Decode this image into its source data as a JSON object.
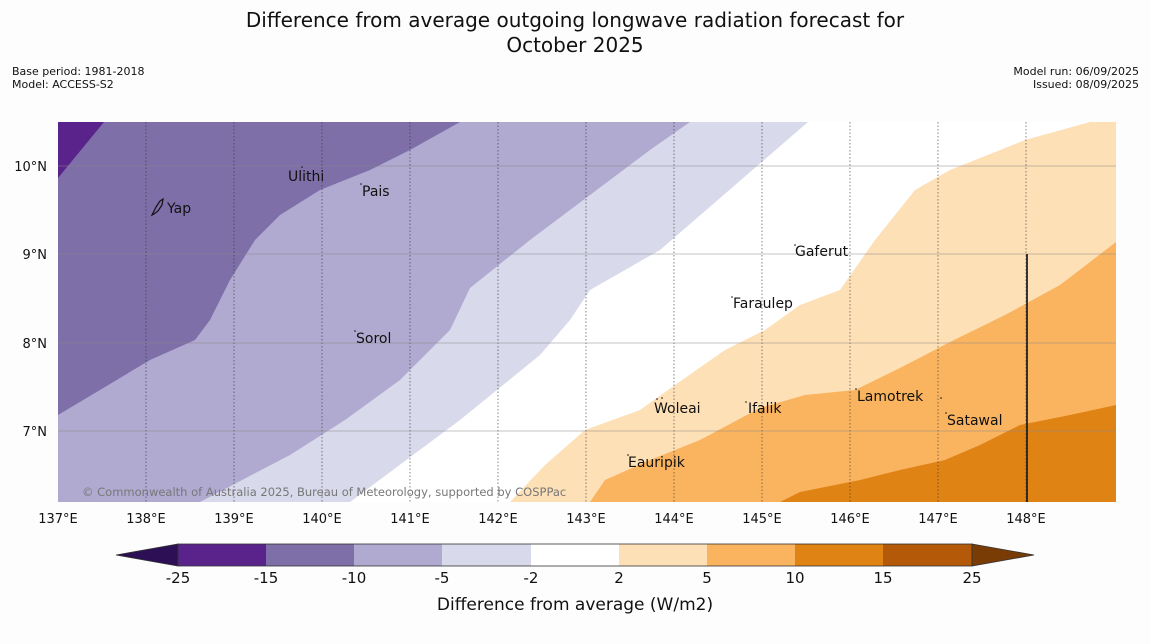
{
  "title_line1": "Difference from average outgoing longwave radiation forecast for",
  "title_line2": "October 2025",
  "meta_left": [
    "Base period: 1981-2018",
    "Model: ACCESS-S2"
  ],
  "meta_right": [
    "Model run: 06/09/2025",
    "Issued: 08/09/2025"
  ],
  "map": {
    "lon_labels": [
      "137°E",
      "138°E",
      "139°E",
      "140°E",
      "141°E",
      "142°E",
      "143°E",
      "144°E",
      "145°E",
      "146°E",
      "147°E",
      "148°E"
    ],
    "lat_labels": [
      "10°N",
      "9°N",
      "8°N",
      "7°N"
    ],
    "places": [
      "Ulithi",
      "Pais",
      "Yap",
      "Gaferut",
      "Faraulep",
      "Sorol",
      "Lamotrek",
      "Woleai",
      "Ifalik",
      "Satawal",
      "Eauripik"
    ],
    "copyright": "© Commonwealth of Australia 2025, Bureau of Meteorology, supported by COSPPac"
  },
  "colorbar": {
    "title": "Difference from average (W/m2)",
    "tick_labels": [
      "-25",
      "-15",
      "-10",
      "-5",
      "-2",
      "2",
      "5",
      "10",
      "15",
      "25"
    ],
    "colors": {
      "below_-25": "#2d0f55",
      "-25_-15": "#59238b",
      "-15_-10": "#7e6fa9",
      "-10_-5": "#b0aad1",
      "-5_-2": "#d8d9ea",
      "-2_2": "#ffffff",
      "2_5": "#fde0b6",
      "5_10": "#fab45f",
      "10_15": "#e08315",
      "15_25": "#b45908",
      "above_25": "#7a3c05"
    }
  }
}
